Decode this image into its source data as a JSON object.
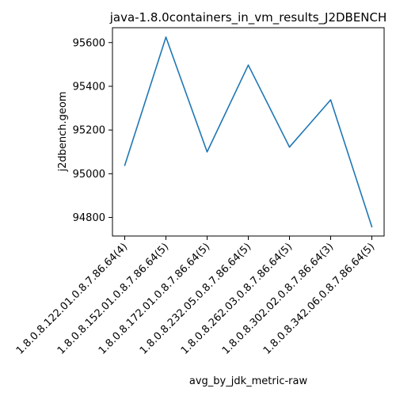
{
  "chart_data": {
    "type": "line",
    "title": "java-1.8.0containers_in_vm_results_J2DBENCH",
    "xlabel": "avg_by_jdk_metric-raw",
    "ylabel": "j2dbench.geom",
    "categories": [
      "1.8.0.8.122.01.0.8.7.86.64(4)",
      "1.8.0.8.152.01.0.8.7.86.64(5)",
      "1.8.0.8.172.01.0.8.7.86.64(5)",
      "1.8.0.8.232.05.0.8.7.86.64(5)",
      "1.8.0.8.262.03.0.8.7.86.64(5)",
      "1.8.0.8.302.02.0.8.7.86.64(3)",
      "1.8.0.8.342.06.0.8.7.86.64(5)"
    ],
    "series": [
      {
        "values": [
          95038,
          95625,
          95100,
          95497,
          95122,
          95338,
          94757
        ]
      }
    ],
    "yticks": [
      94800,
      95000,
      95200,
      95400,
      95600
    ],
    "ylim": [
      94715,
      95668
    ],
    "line_color": "#1f77b4",
    "grid": false,
    "legend": "none"
  }
}
